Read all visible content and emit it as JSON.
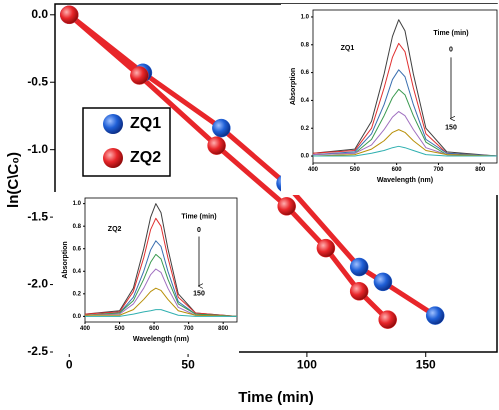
{
  "chart_data": [
    {
      "type": "scatter",
      "x_label": "Time (min)",
      "y_label": "ln(C\\C₀)",
      "xlim": [
        -6,
        180
      ],
      "xticks": [
        0,
        50,
        100,
        150
      ],
      "ylim": [
        -2.5,
        0.08
      ],
      "yticks": [
        {
          "value": 0,
          "label": "0.0"
        },
        -0.5,
        {
          "value": -1,
          "label": "-1.0"
        },
        -1.5,
        {
          "value": -2,
          "label": "-2.0"
        },
        -2.5
      ],
      "line_color": "#e8262a",
      "legend": "left",
      "series": [
        {
          "name": "ZQ1",
          "color": "#1f5fd6",
          "x": [
            0,
            31,
            64,
            91,
            122,
            132,
            154
          ],
          "values": [
            0,
            -0.43,
            -0.84,
            -1.25,
            -1.87,
            -1.98,
            -2.23
          ]
        },
        {
          "name": "ZQ2",
          "color": "#e8262a",
          "x": [
            0,
            29.5,
            62,
            91.5,
            108,
            122,
            134
          ],
          "values": [
            0,
            -0.45,
            -0.97,
            -1.42,
            -1.73,
            -2.05,
            -2.26
          ]
        }
      ]
    },
    {
      "type": "line",
      "label": "ZQ1",
      "legend_title": "Time (min)",
      "arrow_start": "0",
      "arrow_end": "150",
      "x_label": "Wavelength (nm)",
      "y_label": "Absorption",
      "xlim": [
        400,
        840
      ],
      "xticks": [
        400,
        500,
        600,
        700,
        800
      ],
      "ylim": [
        -0.05,
        1.05
      ],
      "yticks": [
        {
          "value": 0,
          "label": "0.0"
        },
        0.2,
        0.4,
        0.6,
        0.8,
        {
          "value": 1,
          "label": "1.0"
        }
      ],
      "x": [
        400,
        500,
        540,
        570,
        590,
        605,
        620,
        640,
        670,
        720,
        840
      ],
      "series": [
        {
          "color": "#404040",
          "values": [
            0.02,
            0.05,
            0.25,
            0.59,
            0.86,
            0.98,
            0.9,
            0.59,
            0.2,
            0.03,
            0.0
          ]
        },
        {
          "color": "#e03030",
          "values": [
            0.02,
            0.04,
            0.2,
            0.49,
            0.71,
            0.81,
            0.75,
            0.49,
            0.16,
            0.02,
            0.0
          ]
        },
        {
          "color": "#3a6fb0",
          "values": [
            0.01,
            0.03,
            0.16,
            0.37,
            0.55,
            0.62,
            0.57,
            0.37,
            0.12,
            0.02,
            0.0
          ]
        },
        {
          "color": "#3a9a50",
          "values": [
            0.01,
            0.02,
            0.12,
            0.29,
            0.42,
            0.48,
            0.44,
            0.29,
            0.1,
            0.01,
            0.0
          ]
        },
        {
          "color": "#a070c0",
          "values": [
            0.01,
            0.02,
            0.08,
            0.19,
            0.28,
            0.32,
            0.29,
            0.19,
            0.06,
            0.01,
            0.0
          ]
        },
        {
          "color": "#b8900a",
          "values": [
            0.0,
            0.01,
            0.05,
            0.11,
            0.17,
            0.19,
            0.17,
            0.11,
            0.04,
            0.01,
            0.0
          ]
        },
        {
          "color": "#30b0b0",
          "values": [
            0.0,
            0.0,
            0.02,
            0.04,
            0.06,
            0.07,
            0.06,
            0.04,
            0.01,
            0.0,
            0.0
          ]
        }
      ]
    },
    {
      "type": "line",
      "label": "ZQ2",
      "legend_title": "Time (min)",
      "arrow_start": "0",
      "arrow_end": "150",
      "x_label": "Wavelength (nm)",
      "y_label": "Absorption",
      "xlim": [
        400,
        840
      ],
      "xticks": [
        400,
        500,
        600,
        700,
        800
      ],
      "ylim": [
        -0.05,
        1.05
      ],
      "yticks": [
        {
          "value": 0,
          "label": "0.0"
        },
        0.2,
        0.4,
        0.6,
        0.8,
        {
          "value": 1,
          "label": "1.0"
        }
      ],
      "x": [
        400,
        500,
        540,
        570,
        590,
        605,
        620,
        640,
        670,
        720,
        840
      ],
      "series": [
        {
          "color": "#404040",
          "values": [
            0.02,
            0.05,
            0.25,
            0.6,
            0.88,
            1.0,
            0.92,
            0.6,
            0.2,
            0.03,
            0.0
          ]
        },
        {
          "color": "#e03030",
          "values": [
            0.02,
            0.04,
            0.22,
            0.52,
            0.77,
            0.87,
            0.8,
            0.52,
            0.17,
            0.03,
            0.0
          ]
        },
        {
          "color": "#3a6fb0",
          "values": [
            0.01,
            0.03,
            0.17,
            0.4,
            0.59,
            0.67,
            0.62,
            0.4,
            0.13,
            0.02,
            0.0
          ]
        },
        {
          "color": "#3a9a50",
          "values": [
            0.01,
            0.03,
            0.14,
            0.33,
            0.48,
            0.55,
            0.51,
            0.33,
            0.11,
            0.02,
            0.0
          ]
        },
        {
          "color": "#a070c0",
          "values": [
            0.01,
            0.02,
            0.11,
            0.25,
            0.37,
            0.42,
            0.39,
            0.25,
            0.08,
            0.01,
            0.0
          ]
        },
        {
          "color": "#b8900a",
          "values": [
            0.01,
            0.01,
            0.06,
            0.15,
            0.22,
            0.25,
            0.23,
            0.15,
            0.05,
            0.01,
            0.0
          ]
        },
        {
          "color": "#30b0b0",
          "values": [
            0.0,
            0.0,
            0.02,
            0.04,
            0.05,
            0.06,
            0.06,
            0.04,
            0.01,
            0.0,
            0.0
          ]
        }
      ]
    }
  ]
}
